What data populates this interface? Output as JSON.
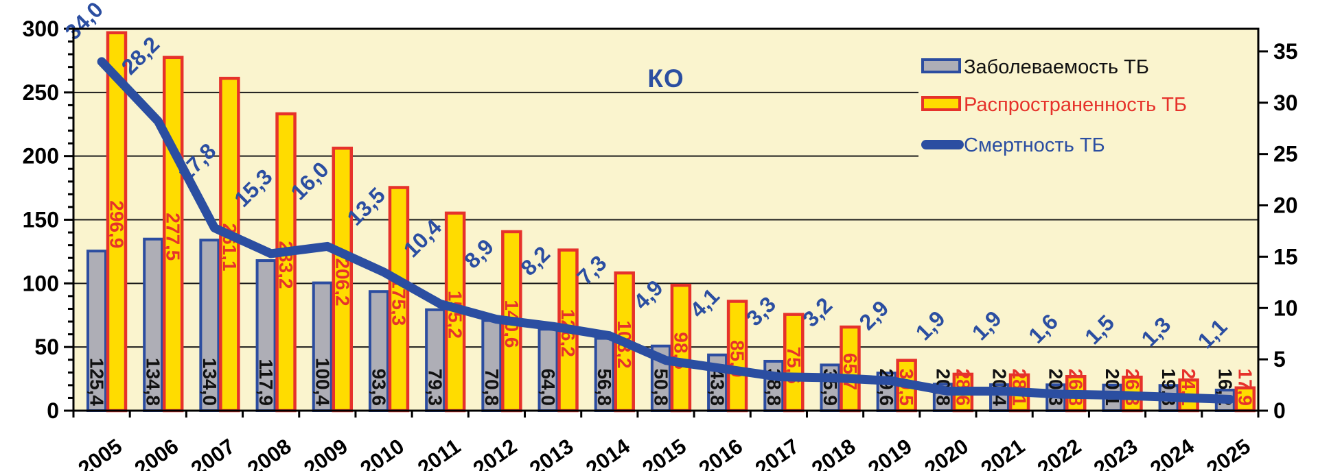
{
  "title": "КО",
  "legend": {
    "incidence_label": "Заболеваемость ТБ",
    "prevalence_label": "Распространенность ТБ",
    "mortality_label": "Смертность ТБ"
  },
  "colors": {
    "plot_bg": "#FAF4CE",
    "incidence_fill": "#AEAEB6",
    "incidence_border": "#2C4DA0",
    "prevalence_fill": "#FFDC00",
    "prevalence_border": "#E6322B",
    "mortality_line": "#2B4EA1",
    "incidence_label_color": "#111111",
    "prevalence_label_color": "#E6322B",
    "mortality_label_color": "#2B4EA1",
    "grid_color": "#1a1a1a",
    "axis_text_color": "#000000"
  },
  "chart_data": {
    "type": "combo-bar-line",
    "title": "КО",
    "categories": [
      2005,
      2006,
      2007,
      2008,
      2009,
      2010,
      2011,
      2012,
      2013,
      2014,
      2015,
      2016,
      2017,
      2018,
      2019,
      2020,
      2021,
      2022,
      2023,
      2024,
      2025
    ],
    "series": [
      {
        "name": "Заболеваемость ТБ",
        "type": "bar",
        "axis": "left",
        "values": [
          125.4,
          134.8,
          134.0,
          117.9,
          100.4,
          93.6,
          79.3,
          70.8,
          64.0,
          56.8,
          50.8,
          43.8,
          38.8,
          35.9,
          29.6,
          20.8,
          20.4,
          20.3,
          20.1,
          19.8,
          16.2
        ]
      },
      {
        "name": "Распространенность ТБ",
        "type": "bar",
        "axis": "left",
        "values": [
          296.9,
          277.5,
          261.1,
          233.2,
          206.2,
          175.3,
          155.2,
          140.6,
          126.2,
          108.2,
          98.5,
          85.9,
          75.6,
          65.7,
          39.5,
          28.6,
          28.1,
          26.8,
          26.3,
          24.1,
          17.9
        ]
      },
      {
        "name": "Смертность ТБ",
        "type": "line",
        "axis": "right",
        "values": [
          34.0,
          28.2,
          17.8,
          15.3,
          16.0,
          13.5,
          10.4,
          8.9,
          8.2,
          7.3,
          4.9,
          4.1,
          3.3,
          3.2,
          2.9,
          1.9,
          1.9,
          1.6,
          1.5,
          1.3,
          1.1
        ]
      }
    ],
    "left_axis": {
      "min": 0,
      "max": 300,
      "major_step": 50,
      "minor_step": 10,
      "tick_labels": [
        "0",
        "50",
        "100",
        "150",
        "200",
        "250",
        "300"
      ]
    },
    "right_axis": {
      "min": 0,
      "max": 35,
      "major_step": 5,
      "tick_labels": [
        "0",
        "5",
        "10",
        "15",
        "20",
        "25",
        "30",
        "35"
      ]
    },
    "grid": true,
    "legend_position": "top-right",
    "decimal_separator": ","
  }
}
